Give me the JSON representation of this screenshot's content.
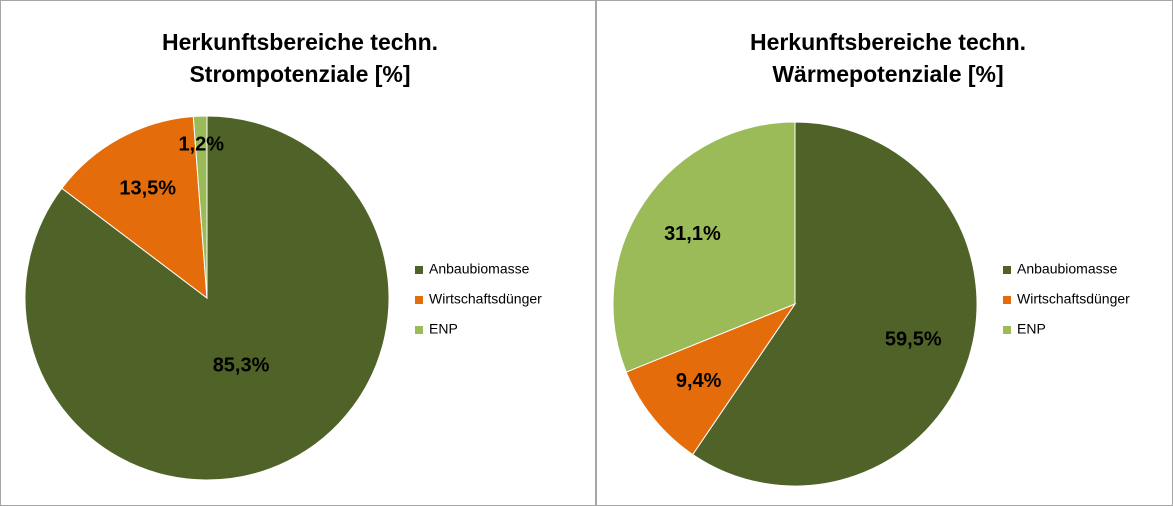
{
  "chart_data": [
    {
      "type": "pie",
      "title": [
        "Herkunftsbereiche techn.",
        "Strompotenziale [%]"
      ],
      "categories": [
        "Anbaubiomasse",
        "Wirtschaftsdünger",
        "ENP"
      ],
      "values": [
        85.3,
        13.5,
        1.2
      ],
      "value_labels": [
        "85,3%",
        "13,5%",
        "1,2%"
      ],
      "colors": [
        "#4f6228",
        "#e46c0a",
        "#9bbb59"
      ],
      "legend": "right"
    },
    {
      "type": "pie",
      "title": [
        "Herkunftsbereiche techn.",
        "Wärmepotenziale [%]"
      ],
      "categories": [
        "Anbaubiomasse",
        "Wirtschaftsdünger",
        "ENP"
      ],
      "values": [
        59.5,
        9.4,
        31.1
      ],
      "value_labels": [
        "59,5%",
        "9,4%",
        "31,1%"
      ],
      "colors": [
        "#4f6228",
        "#e46c0a",
        "#9bbb59"
      ],
      "legend": "right"
    }
  ]
}
